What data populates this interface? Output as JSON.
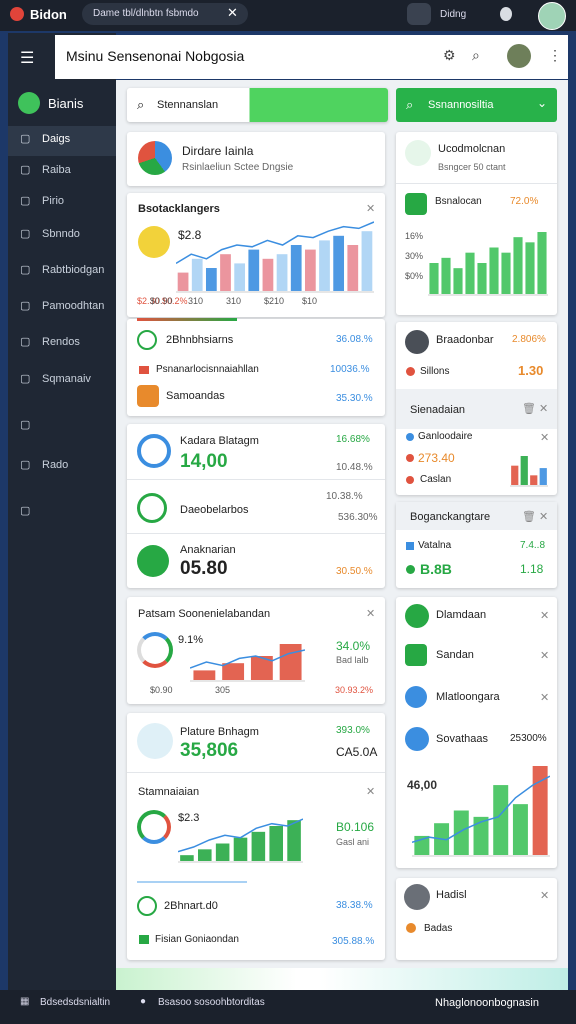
{
  "topbar": {
    "brand": "Bidon",
    "tab": "Dame tbl/dlnbtn fsbmdo",
    "user": "Didng"
  },
  "sidebar": {
    "brand": "Bianis",
    "items": [
      "Daigs",
      "Raiba",
      "Pirio",
      "Sbnndo",
      "Rabtbiodgan",
      "Pamoodhtan",
      "Rendos",
      "Sqmanaiv",
      "Rado"
    ]
  },
  "header": {
    "title": "Msinu Sensenonai Nobgosia"
  },
  "search": {
    "placeholder": "Stennanslan",
    "button": "Ssnannosiltia"
  },
  "left": [
    {
      "title": "Dirdare Iainla",
      "subtitle": "Rsinlaeliun Sctee Dngsie"
    },
    {
      "title": "Bsotacklangers",
      "value": "$2.8",
      "xlabels": [
        "$0.90",
        "310",
        "310",
        "$210",
        "$10"
      ],
      "legend": "$2.30 $0.2%",
      "chart": {
        "bars": [
          20,
          35,
          25,
          40,
          30,
          45,
          35,
          40,
          50,
          45,
          55,
          60,
          50,
          65
        ],
        "line": [
          30,
          40,
          35,
          45,
          50,
          48,
          55,
          50,
          60,
          58,
          65,
          70,
          68,
          75
        ]
      }
    },
    {
      "rows": [
        {
          "label": "2Bhnbhsiarns",
          "value": "36.08.%"
        },
        {
          "label": "Psnanarlocisnnaiahllan",
          "value": "10036.%"
        },
        {
          "label": "Samoandas",
          "value": "35.30.%"
        }
      ]
    },
    {
      "rows": [
        {
          "label": "Kadara Blatagm",
          "value": "14,00",
          "pct": "16.68%",
          "sub": "10.48.%"
        },
        {
          "label": "Daeobelarbos",
          "pct": "10.38.%",
          "sub": "536.30%"
        },
        {
          "label": "Anaknarian",
          "value": "05.80",
          "pct": "30.50.%"
        }
      ]
    },
    {
      "title": "Patsam Soonenielabandan",
      "gauge": "9.1%",
      "value": "34.0%",
      "sub": "Bad lalb",
      "xlabels": [
        "$0.90",
        "305"
      ],
      "legend": "30.93.2%",
      "chart": {
        "bars": [
          8,
          14,
          20,
          30
        ],
        "line": [
          10,
          15,
          12,
          18,
          20,
          16,
          22,
          25
        ]
      }
    },
    {
      "title": "Plature Bnhagm",
      "value": "35,806",
      "pct": "393.0%",
      "sub": "CA5.0A",
      "section": "Stamnaiaian",
      "small": "$2.3",
      "value2": "B0.106",
      "sub2": "Gasl ani",
      "chart": {
        "bars": [
          5,
          10,
          15,
          20,
          25,
          30,
          35
        ],
        "line": [
          8,
          12,
          18,
          22,
          20,
          28,
          32,
          30,
          36
        ]
      },
      "rows": [
        {
          "label": "2Bhnart.d0",
          "value": "38.38.%"
        },
        {
          "label": "Fisian Goniaondan",
          "value": "305.88.%"
        }
      ]
    }
  ],
  "right": [
    {
      "title": "Ucodmolcnan",
      "subtitle": "Bsngcer 50 ctant",
      "label": "Bsnalocan",
      "pct": "72.0%",
      "ylabels": [
        "16%",
        "30%",
        "$0%"
      ],
      "chart": {
        "bars": [
          30,
          35,
          25,
          40,
          30,
          45,
          40,
          55,
          50,
          60
        ]
      }
    },
    {
      "title": "Braadonbar",
      "pct": "2.806%",
      "label": "Sillons",
      "value": "1.30",
      "section": "Sienadaian",
      "items": [
        "Ganloodaire",
        "273.40",
        "Caslan"
      ],
      "chart": {
        "bars": [
          40,
          60,
          20,
          35
        ]
      }
    },
    {
      "title": "Boganckangtare",
      "label": "Vatalna",
      "pct": "7.4..8",
      "value": "B.8B",
      "value2": "1.18"
    },
    {
      "items": [
        "Dlamdaan",
        "Sandan",
        "Mlatloongara",
        "Sovathaas"
      ],
      "pct": "25300%",
      "value": "46,00",
      "chart": {
        "bars": [
          15,
          25,
          35,
          30,
          55,
          40,
          70
        ],
        "line": [
          10,
          14,
          12,
          20,
          26,
          30,
          45,
          55,
          62
        ]
      }
    },
    {
      "title": "Hadisl",
      "label": "Badas"
    }
  ],
  "bottombar": [
    "Bdsedsdsnialtin",
    "Bsasoo sosoohbtorditas",
    "Nhaglonoonbognasin"
  ]
}
